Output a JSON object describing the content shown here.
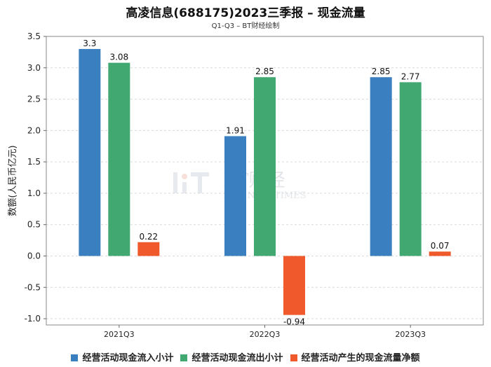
{
  "chart_data": {
    "type": "bar",
    "title": "高凌信息(688175)2023三季报 – 现金流量",
    "subtitle": "Q1-Q3 – BT财经绘制",
    "xlabel": "",
    "ylabel": "数额(人民币亿元)",
    "categories": [
      "2021Q3",
      "2022Q3",
      "2023Q3"
    ],
    "ylim": [
      -1.1,
      3.5
    ],
    "yticks": [
      "3.5",
      "3.0",
      "2.5",
      "2.0",
      "1.5",
      "1.0",
      "0.5",
      "0.0",
      "-0.5",
      "-1.0"
    ],
    "ytick_values": [
      3.5,
      3.0,
      2.5,
      2.0,
      1.5,
      1.0,
      0.5,
      0.0,
      -0.5,
      -1.0
    ],
    "grid": true,
    "legend_position": "bottom",
    "series": [
      {
        "name": "经营活动现金流入小计",
        "color": "#3a7fbf",
        "values": [
          3.3,
          1.91,
          2.85
        ],
        "labels": [
          "3.3",
          "1.91",
          "2.85"
        ]
      },
      {
        "name": "经营活动现金流出小计",
        "color": "#41a872",
        "values": [
          3.08,
          2.85,
          2.77
        ],
        "labels": [
          "3.08",
          "2.85",
          "2.77"
        ]
      },
      {
        "name": "经营活动产生的现金流量净额",
        "color": "#f0592b",
        "values": [
          0.22,
          -0.94,
          0.07
        ],
        "labels": [
          "0.22",
          "-0.94",
          "0.07"
        ]
      }
    ],
    "watermark": {
      "main": "BT财经",
      "sub": "BUSINESSTIMES"
    }
  }
}
